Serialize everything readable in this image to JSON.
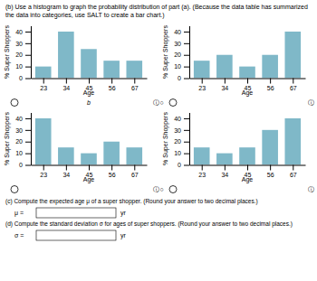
{
  "title": "(b)  Use a histogram to graph the probability distribution of part (a). (Because the data table has summarized the data into\n        categories, use SALT to create a bar chart.)",
  "annotations": [
    "ⓘ○",
    "ⓘ○",
    "b",
    "ⓘ",
    "ⓘ",
    "(c)  Compute the expected age μ of a super shopper. (Round your answer to two decimal places.)",
    "μ =",
    "yr",
    "(d)  Compute the standard deviation σ for ages of super shoppers. (Round your answer to two decimal places.)",
    "σ =",
    "yr"
  ],
  "chart_data": [
    {
      "type": "bar",
      "x": [
        23,
        34,
        45,
        56,
        67
      ],
      "values": [
        10,
        40,
        25,
        15,
        15
      ],
      "color": "#7fb8c8",
      "xlim": [
        17,
        73
      ],
      "xticks": [
        23,
        34,
        45,
        56,
        67
      ],
      "ylim": [
        0,
        45
      ],
      "yticks": [
        0,
        10,
        20,
        30,
        40
      ],
      "xlabel": "Age",
      "ylabel": "% Super Shoppers",
      "grid": false
    },
    {
      "type": "bar",
      "x": [
        23,
        34,
        45,
        56,
        67
      ],
      "values": [
        15,
        20,
        10,
        20,
        40
      ],
      "color": "#7fb8c8",
      "xlim": [
        17,
        73
      ],
      "xticks": [
        23,
        34,
        45,
        56,
        67
      ],
      "ylim": [
        0,
        45
      ],
      "yticks": [
        0,
        10,
        20,
        30,
        40
      ],
      "xlabel": "Age",
      "ylabel": "% Super Shoppers",
      "grid": false
    },
    {
      "type": "bar",
      "x": [
        23,
        34,
        45,
        56,
        67
      ],
      "values": [
        40,
        15,
        10,
        20,
        15
      ],
      "color": "#7fb8c8",
      "xlim": [
        17,
        73
      ],
      "xticks": [
        23,
        34,
        45,
        56,
        67
      ],
      "ylim": [
        0,
        45
      ],
      "yticks": [
        0,
        10,
        20,
        30,
        40
      ],
      "xlabel": "Age",
      "ylabel": "% Super Shoppers",
      "grid": false
    },
    {
      "type": "bar",
      "x": [
        23,
        34,
        45,
        56,
        67
      ],
      "values": [
        15,
        10,
        15,
        30,
        40
      ],
      "color": "#7fb8c8",
      "xlim": [
        17,
        73
      ],
      "xticks": [
        23,
        34,
        45,
        56,
        67
      ],
      "ylim": [
        0,
        45
      ],
      "yticks": [
        0,
        10,
        20,
        30,
        40
      ],
      "xlabel": "Age",
      "ylabel": "% Super Shoppers",
      "grid": false
    }
  ]
}
